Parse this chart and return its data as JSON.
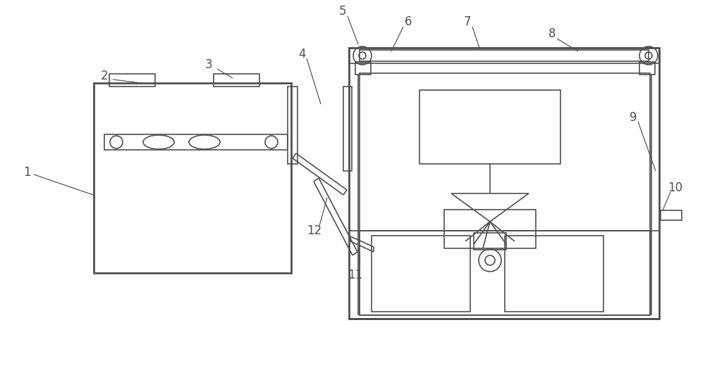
{
  "bg": "#ffffff",
  "lc": "#505050",
  "lw": 1.2,
  "tlw": 2.0,
  "plw": 0.85
}
